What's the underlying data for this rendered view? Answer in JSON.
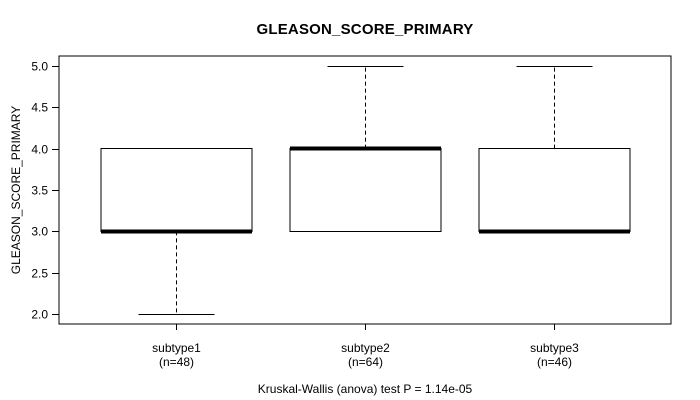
{
  "chart_data": {
    "type": "boxplot",
    "title": "GLEASON_SCORE_PRIMARY",
    "ylabel": "GLEASON_SCORE_PRIMARY",
    "xlabel": "",
    "caption": "Kruskal-Wallis (anova) test P = 1.14e-05",
    "ylim": [
      1.88,
      5.12
    ],
    "yticks": [
      2.0,
      2.5,
      3.0,
      3.5,
      4.0,
      4.5,
      5.0
    ],
    "ytick_labels": [
      "2.0",
      "2.5",
      "3.0",
      "3.5",
      "4.0",
      "4.5",
      "5.0"
    ],
    "grid": false,
    "legend": false,
    "groups": [
      {
        "label": "subtype1",
        "sublabel": "(n=48)",
        "n": 48,
        "whisker_low": 2.0,
        "q1": 3.0,
        "median": 3.0,
        "q3": 4.0,
        "whisker_high": 4.0,
        "outliers": []
      },
      {
        "label": "subtype2",
        "sublabel": "(n=64)",
        "n": 64,
        "whisker_low": 3.0,
        "q1": 3.0,
        "median": 4.0,
        "q3": 4.0,
        "whisker_high": 5.0,
        "outliers": []
      },
      {
        "label": "subtype3",
        "sublabel": "(n=46)",
        "n": 46,
        "whisker_low": 3.0,
        "q1": 3.0,
        "median": 3.0,
        "q3": 4.0,
        "whisker_high": 5.0,
        "outliers": []
      }
    ],
    "colors": {
      "background": "#ffffff",
      "frame": "#000000",
      "box_fill": "#ffffff",
      "line": "#000000",
      "text": "#000000"
    }
  }
}
